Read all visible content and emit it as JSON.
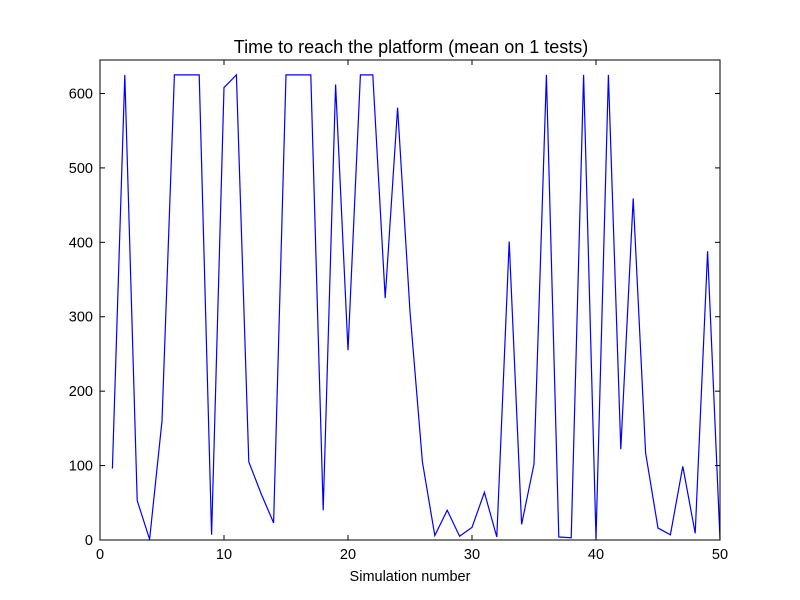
{
  "chart_data": {
    "type": "line",
    "title": "Time to reach the platform (mean on 1 tests)",
    "xlabel": "Simulation number",
    "ylabel": "",
    "xlim": [
      0,
      50
    ],
    "ylim": [
      0,
      645
    ],
    "xticks": [
      0,
      10,
      20,
      30,
      40,
      50
    ],
    "yticks": [
      0,
      100,
      200,
      300,
      400,
      500,
      600
    ],
    "grid": false,
    "legend": "none",
    "series": [
      {
        "color": "#0000ff",
        "x": [
          1,
          2,
          3,
          4,
          5,
          6,
          7,
          8,
          9,
          10,
          11,
          12,
          13,
          14,
          15,
          16,
          17,
          18,
          19,
          20,
          21,
          22,
          23,
          24,
          25,
          26,
          27,
          28,
          29,
          30,
          31,
          32,
          33,
          34,
          35,
          36,
          37,
          38,
          39,
          40,
          41,
          42,
          43,
          44,
          45,
          46,
          47,
          48,
          49,
          50
        ],
        "values": [
          96,
          625,
          53,
          1,
          160,
          625,
          625,
          625,
          7,
          608,
          625,
          105,
          62,
          23,
          625,
          625,
          625,
          40,
          612,
          255,
          625,
          625,
          325,
          581,
          307,
          105,
          6,
          40,
          5,
          17,
          64,
          4,
          401,
          21,
          102,
          625,
          4,
          3,
          625,
          2,
          625,
          122,
          459,
          117,
          16,
          7,
          99,
          9,
          388,
          1
        ]
      }
    ]
  }
}
